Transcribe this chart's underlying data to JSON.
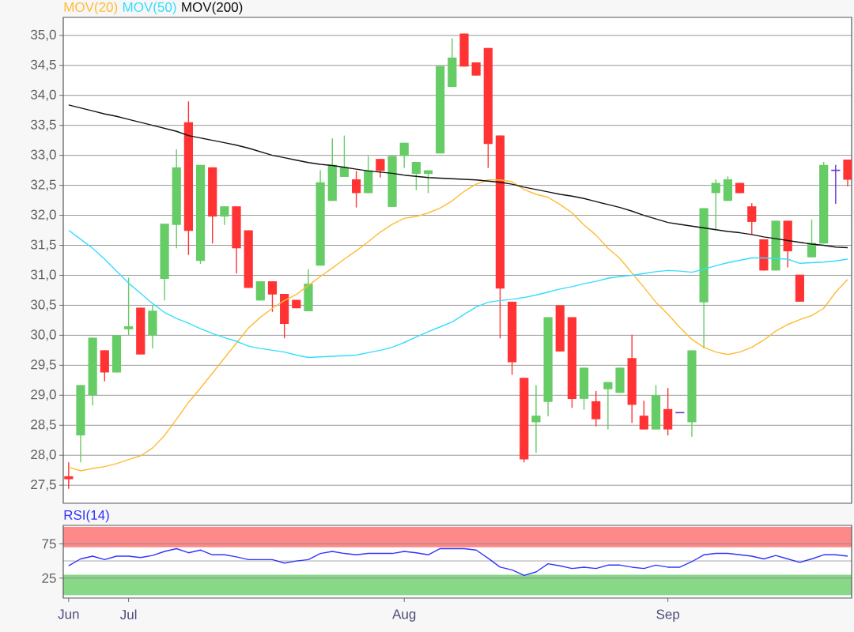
{
  "chart_data": [
    {
      "type": "candlestick",
      "ohlc": [
        [
          27.65,
          27.88,
          27.44,
          27.6
        ],
        [
          28.33,
          29.17,
          27.88,
          29.17
        ],
        [
          29.0,
          29.96,
          28.83,
          29.96
        ],
        [
          29.75,
          29.75,
          29.23,
          29.38
        ],
        [
          29.38,
          30.0,
          29.38,
          30.0
        ],
        [
          30.1,
          30.96,
          30.0,
          30.15
        ],
        [
          30.46,
          30.46,
          29.68,
          29.68
        ],
        [
          30.0,
          30.5,
          29.78,
          30.41
        ],
        [
          30.94,
          31.86,
          30.58,
          31.86
        ],
        [
          31.84,
          33.1,
          31.45,
          32.8
        ],
        [
          33.55,
          33.9,
          31.34,
          31.74
        ],
        [
          31.24,
          32.84,
          31.19,
          32.84
        ],
        [
          32.8,
          32.8,
          31.53,
          31.98
        ],
        [
          31.98,
          32.15,
          31.84,
          32.15
        ],
        [
          32.15,
          32.15,
          31.03,
          31.45
        ],
        [
          31.75,
          31.75,
          30.79,
          30.79
        ],
        [
          30.58,
          30.9,
          30.58,
          30.9
        ],
        [
          30.9,
          30.9,
          30.39,
          30.68
        ],
        [
          30.69,
          30.69,
          29.95,
          30.19
        ],
        [
          30.59,
          30.59,
          30.45,
          30.45
        ],
        [
          30.4,
          31.1,
          30.4,
          30.86
        ],
        [
          31.16,
          32.75,
          31.16,
          32.55
        ],
        [
          32.24,
          33.28,
          32.24,
          32.84
        ],
        [
          32.64,
          33.33,
          32.64,
          32.8
        ],
        [
          32.6,
          32.74,
          32.13,
          32.37
        ],
        [
          32.37,
          32.99,
          32.37,
          32.75
        ],
        [
          32.94,
          32.94,
          32.63,
          32.74
        ],
        [
          32.14,
          32.99,
          32.14,
          32.99
        ],
        [
          32.99,
          33.21,
          32.79,
          33.21
        ],
        [
          32.69,
          32.89,
          32.42,
          32.89
        ],
        [
          32.69,
          32.75,
          32.37,
          32.75
        ],
        [
          33.03,
          34.49,
          33.03,
          34.49
        ],
        [
          34.14,
          34.95,
          34.14,
          34.63
        ],
        [
          35.03,
          35.03,
          34.48,
          34.48
        ],
        [
          34.55,
          34.55,
          34.33,
          34.33
        ],
        [
          34.79,
          34.79,
          32.79,
          33.19
        ],
        [
          33.33,
          33.33,
          29.95,
          30.78
        ],
        [
          30.56,
          30.56,
          29.34,
          29.55
        ],
        [
          29.29,
          29.29,
          27.88,
          27.93
        ],
        [
          28.55,
          29.17,
          28.04,
          28.66
        ],
        [
          28.89,
          30.3,
          28.65,
          30.3
        ],
        [
          30.5,
          30.5,
          29.73,
          29.73
        ],
        [
          30.3,
          30.3,
          28.79,
          28.94
        ],
        [
          28.94,
          29.46,
          28.76,
          29.46
        ],
        [
          28.9,
          29.07,
          28.48,
          28.6
        ],
        [
          29.1,
          29.22,
          28.43,
          29.22
        ],
        [
          29.04,
          29.46,
          29.04,
          29.46
        ],
        [
          29.62,
          30.01,
          28.54,
          28.84
        ],
        [
          28.66,
          28.91,
          28.43,
          28.43
        ],
        [
          28.43,
          29.17,
          28.43,
          29.0
        ],
        [
          28.77,
          29.12,
          28.33,
          28.43
        ],
        [
          28.71,
          28.71,
          28.71,
          28.71
        ],
        [
          28.55,
          29.75,
          28.31,
          29.75
        ],
        [
          30.55,
          32.12,
          29.78,
          32.12
        ],
        [
          32.37,
          32.6,
          31.77,
          32.54
        ],
        [
          32.24,
          32.65,
          32.24,
          32.6
        ],
        [
          32.54,
          32.54,
          32.37,
          32.37
        ],
        [
          32.15,
          32.2,
          31.68,
          31.89
        ],
        [
          31.6,
          31.6,
          31.08,
          31.08
        ],
        [
          31.08,
          31.91,
          31.08,
          31.91
        ],
        [
          31.91,
          31.91,
          31.13,
          31.4
        ],
        [
          31.01,
          31.01,
          30.56,
          30.56
        ],
        [
          31.3,
          31.93,
          31.3,
          31.54
        ],
        [
          31.53,
          32.89,
          31.53,
          32.84
        ],
        [
          32.75,
          32.84,
          32.19,
          32.75
        ],
        [
          32.93,
          32.93,
          32.48,
          32.59
        ]
      ],
      "colors": [
        "#ff3333",
        "#66cc66",
        "#66cc66",
        "#ff3333",
        "#66cc66",
        "#66cc66",
        "#ff3333",
        "#66cc66",
        "#66cc66",
        "#66cc66",
        "#ff3333",
        "#66cc66",
        "#ff3333",
        "#66cc66",
        "#ff3333",
        "#ff3333",
        "#66cc66",
        "#ff3333",
        "#ff3333",
        "#ff3333",
        "#66cc66",
        "#66cc66",
        "#66cc66",
        "#66cc66",
        "#ff3333",
        "#66cc66",
        "#ff3333",
        "#66cc66",
        "#66cc66",
        "#66cc66",
        "#66cc66",
        "#66cc66",
        "#66cc66",
        "#ff3333",
        "#ff3333",
        "#ff3333",
        "#ff3333",
        "#ff3333",
        "#ff3333",
        "#66cc66",
        "#66cc66",
        "#ff3333",
        "#ff3333",
        "#66cc66",
        "#ff3333",
        "#66cc66",
        "#66cc66",
        "#ff3333",
        "#ff3333",
        "#66cc66",
        "#ff3333",
        "#6633cc",
        "#66cc66",
        "#66cc66",
        "#66cc66",
        "#66cc66",
        "#ff3333",
        "#ff3333",
        "#ff3333",
        "#66cc66",
        "#ff3333",
        "#ff3333",
        "#66cc66",
        "#66cc66",
        "#6633cc",
        "#ff3333"
      ],
      "series": [
        {
          "type": "line",
          "name": "MOV(20)",
          "color": "#ffbb33",
          "values": [
            27.8,
            27.74,
            27.78,
            27.81,
            27.86,
            27.93,
            27.99,
            28.12,
            28.33,
            28.6,
            28.88,
            29.12,
            29.37,
            29.62,
            29.87,
            30.12,
            30.3,
            30.45,
            30.58,
            30.68,
            30.83,
            30.98,
            31.12,
            31.27,
            31.41,
            31.56,
            31.72,
            31.85,
            31.95,
            31.98,
            32.04,
            32.12,
            32.24,
            32.4,
            32.52,
            32.59,
            32.59,
            32.56,
            32.43,
            32.35,
            32.3,
            32.18,
            32.04,
            31.84,
            31.67,
            31.45,
            31.28,
            31.04,
            30.8,
            30.55,
            30.35,
            30.13,
            29.93,
            29.8,
            29.72,
            29.68,
            29.72,
            29.8,
            29.92,
            30.07,
            30.18,
            30.26,
            30.33,
            30.45,
            30.72,
            30.93
          ]
        },
        {
          "type": "line",
          "name": "MOV(50)",
          "color": "#33ddff",
          "values": [
            31.75,
            31.6,
            31.45,
            31.27,
            31.07,
            30.87,
            30.7,
            30.53,
            30.38,
            30.28,
            30.2,
            30.11,
            30.03,
            29.96,
            29.9,
            29.82,
            29.78,
            29.75,
            29.72,
            29.67,
            29.63,
            29.64,
            29.65,
            29.66,
            29.67,
            29.71,
            29.75,
            29.8,
            29.88,
            29.97,
            30.06,
            30.14,
            30.22,
            30.35,
            30.47,
            30.55,
            30.58,
            30.6,
            30.63,
            30.67,
            30.72,
            30.77,
            30.81,
            30.86,
            30.9,
            30.95,
            30.98,
            31.0,
            31.03,
            31.06,
            31.08,
            31.07,
            31.05,
            31.1,
            31.16,
            31.21,
            31.25,
            31.29,
            31.29,
            31.28,
            31.27,
            31.2,
            31.21,
            31.22,
            31.24,
            31.27
          ]
        },
        {
          "type": "line",
          "name": "MOV(200)",
          "color": "#111111",
          "values": [
            33.84,
            33.79,
            33.74,
            33.69,
            33.65,
            33.6,
            33.55,
            33.5,
            33.45,
            33.4,
            33.33,
            33.29,
            33.25,
            33.21,
            33.17,
            33.12,
            33.06,
            33.0,
            32.96,
            32.92,
            32.88,
            32.85,
            32.83,
            32.8,
            32.77,
            32.74,
            32.72,
            32.7,
            32.67,
            32.65,
            32.63,
            32.62,
            32.61,
            32.6,
            32.59,
            32.57,
            32.55,
            32.52,
            32.47,
            32.43,
            32.39,
            32.35,
            32.32,
            32.28,
            32.23,
            32.18,
            32.13,
            32.07,
            32.0,
            31.94,
            31.88,
            31.85,
            31.82,
            31.79,
            31.76,
            31.73,
            31.71,
            31.68,
            31.64,
            31.61,
            31.58,
            31.55,
            31.52,
            31.5,
            31.47,
            31.46
          ]
        }
      ],
      "ylim": [
        27.2,
        35.3
      ],
      "yticks": [
        {
          "value": 27.5,
          "label": "27,5"
        },
        {
          "value": 28.0,
          "label": "28,0"
        },
        {
          "value": 28.5,
          "label": "28,5"
        },
        {
          "value": 29.0,
          "label": "29,0"
        },
        {
          "value": 29.5,
          "label": "29,5"
        },
        {
          "value": 30.0,
          "label": "30,0"
        },
        {
          "value": 30.5,
          "label": "30,5"
        },
        {
          "value": 31.0,
          "label": "31,0"
        },
        {
          "value": 31.5,
          "label": "31,5"
        },
        {
          "value": 32.0,
          "label": "32,0"
        },
        {
          "value": 32.5,
          "label": "32,5"
        },
        {
          "value": 33.0,
          "label": "33,0"
        },
        {
          "value": 33.5,
          "label": "33,5"
        },
        {
          "value": 34.0,
          "label": "34,0"
        },
        {
          "value": 34.5,
          "label": "34,5"
        },
        {
          "value": 35.0,
          "label": "35,0"
        }
      ],
      "grid": "y",
      "legend": "top left",
      "tick_labels": "y"
    },
    {
      "type": "line",
      "categories": [
        "Jun",
        null,
        null,
        null,
        null,
        "Jul",
        null,
        null,
        null,
        null,
        null,
        null,
        null,
        null,
        null,
        null,
        null,
        null,
        null,
        null,
        null,
        null,
        null,
        null,
        null,
        null,
        null,
        null,
        "Aug",
        null,
        null,
        null,
        null,
        null,
        null,
        null,
        null,
        null,
        null,
        null,
        null,
        null,
        null,
        null,
        null,
        null,
        null,
        null,
        null,
        null,
        "Sep",
        null,
        null,
        null,
        null,
        null,
        null,
        null,
        null,
        null,
        null,
        null,
        null,
        null,
        null,
        null
      ],
      "series": [
        {
          "name": "RSI(14)",
          "color": "#3333ff",
          "values": [
            43,
            53,
            57,
            52,
            57,
            57,
            55,
            58,
            64,
            68,
            62,
            66,
            59,
            59,
            56,
            52,
            52,
            52,
            47,
            50,
            52,
            61,
            64,
            61,
            59,
            61,
            61,
            61,
            64,
            62,
            59,
            68,
            68,
            68,
            66,
            54,
            41,
            37,
            29,
            34,
            46,
            43,
            39,
            41,
            39,
            44,
            44,
            41,
            39,
            44,
            41,
            41,
            49,
            59,
            61,
            61,
            59,
            57,
            53,
            58,
            53,
            48,
            53,
            59,
            59,
            57
          ]
        }
      ],
      "ylim": [
        -4,
        102
      ],
      "yticks": [
        25,
        75
      ],
      "bands": [
        {
          "axis": "y",
          "from": 70,
          "to": 100,
          "color": "#ff8888"
        },
        {
          "axis": "y",
          "from": 0,
          "to": 30,
          "color": "#88d888"
        }
      ],
      "ref_lines": [
        {
          "axis": "y",
          "value": 50,
          "color": "#999999"
        }
      ],
      "grid": "y",
      "legend": "top left"
    }
  ]
}
